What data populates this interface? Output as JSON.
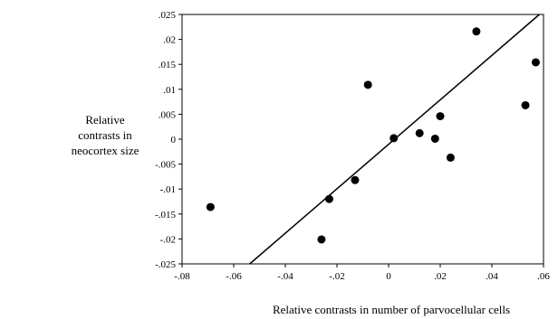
{
  "chart_data": {
    "type": "scatter",
    "title": "",
    "xlabel": "Relative contrasts in number of parvocellular cells",
    "ylabel_lines": [
      "Relative",
      "contrasts in",
      "neocortex size"
    ],
    "xlim": [
      -0.08,
      0.06
    ],
    "ylim": [
      -0.025,
      0.025
    ],
    "x_ticks": [
      -0.08,
      -0.06,
      -0.04,
      -0.02,
      0,
      0.02,
      0.04,
      0.06
    ],
    "x_tick_labels": [
      "-.08",
      "-.06",
      "-.04",
      "-.02",
      "0",
      ".02",
      ".04",
      ".06"
    ],
    "y_ticks": [
      0.025,
      0.02,
      0.015,
      0.01,
      0.005,
      0,
      -0.005,
      -0.01,
      -0.015,
      -0.02,
      -0.025
    ],
    "y_tick_labels": [
      ".025",
      ".02",
      ".015",
      ".01",
      ".005",
      "0",
      "-.005",
      "-.01",
      "-.015",
      "-.02",
      "-.025"
    ],
    "grid": false,
    "points": [
      {
        "x": -0.069,
        "y": -0.0136
      },
      {
        "x": -0.026,
        "y": -0.0201
      },
      {
        "x": -0.023,
        "y": -0.012
      },
      {
        "x": -0.013,
        "y": -0.0082
      },
      {
        "x": -0.008,
        "y": 0.0109
      },
      {
        "x": 0.002,
        "y": 0.0002
      },
      {
        "x": 0.012,
        "y": 0.0012
      },
      {
        "x": 0.018,
        "y": 0.0001
      },
      {
        "x": 0.02,
        "y": 0.0046
      },
      {
        "x": 0.024,
        "y": -0.0037
      },
      {
        "x": 0.034,
        "y": 0.0216
      },
      {
        "x": 0.053,
        "y": 0.0068
      },
      {
        "x": 0.057,
        "y": 0.0154
      }
    ],
    "regression_line": {
      "x": [
        -0.0538,
        0.0584
      ],
      "y": [
        -0.025,
        0.025
      ]
    },
    "marker_color": "#000000",
    "line_color": "#000000"
  }
}
